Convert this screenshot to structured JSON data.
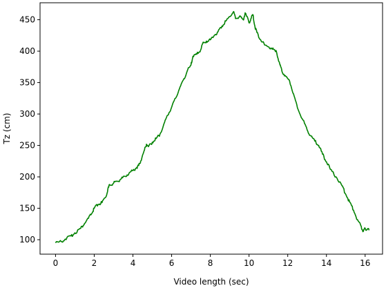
{
  "chart_data": {
    "type": "line",
    "title": "",
    "xlabel": "Video length (sec)",
    "ylabel": "Tz (cm)",
    "xlim": [
      -0.8,
      16.9
    ],
    "ylim": [
      77,
      477
    ],
    "xticks": [
      0,
      2,
      4,
      6,
      8,
      10,
      12,
      14,
      16
    ],
    "yticks": [
      100,
      150,
      200,
      250,
      300,
      350,
      400,
      450
    ],
    "grid": false,
    "legend": "none",
    "series": [
      {
        "color": "#008000",
        "x": [
          0.0,
          0.3,
          0.5,
          0.8,
          1.0,
          1.3,
          1.5,
          1.7,
          1.9,
          2.0,
          2.2,
          2.4,
          2.6,
          2.7,
          2.8,
          3.0,
          3.2,
          3.4,
          3.6,
          3.8,
          4.0,
          4.2,
          4.3,
          4.4,
          4.6,
          4.7,
          4.8,
          5.0,
          5.2,
          5.4,
          5.6,
          5.8,
          6.0,
          6.2,
          6.4,
          6.6,
          6.8,
          7.0,
          7.1,
          7.3,
          7.5,
          7.6,
          7.8,
          8.0,
          8.2,
          8.4,
          8.6,
          8.8,
          9.0,
          9.2,
          9.3,
          9.5,
          9.7,
          9.8,
          10.0,
          10.1,
          10.2,
          10.3,
          10.4,
          10.6,
          10.8,
          11.0,
          11.2,
          11.4,
          11.6,
          11.7,
          11.9,
          12.1,
          12.3,
          12.5,
          12.8,
          13.0,
          13.2,
          13.4,
          13.6,
          13.8,
          14.0,
          14.2,
          14.5,
          14.8,
          15.0,
          15.2,
          15.4,
          15.6,
          15.8,
          15.9,
          16.0,
          16.1,
          16.2
        ],
        "y": [
          95,
          97,
          101,
          106,
          111,
          118,
          126,
          134,
          143,
          150,
          156,
          159,
          168,
          180,
          187,
          190,
          193,
          197,
          201,
          206,
          210,
          215,
          218,
          225,
          243,
          252,
          248,
          255,
          261,
          268,
          284,
          298,
          311,
          325,
          340,
          354,
          368,
          378,
          392,
          395,
          402,
          412,
          416,
          418,
          425,
          431,
          440,
          448,
          455,
          463,
          452,
          455,
          450,
          461,
          445,
          452,
          458,
          440,
          430,
          418,
          410,
          407,
          403,
          401,
          378,
          368,
          360,
          352,
          332,
          310,
          290,
          275,
          265,
          257,
          250,
          236,
          224,
          212,
          200,
          186,
          172,
          160,
          147,
          132,
          121,
          113,
          118,
          116,
          115
        ]
      }
    ]
  }
}
